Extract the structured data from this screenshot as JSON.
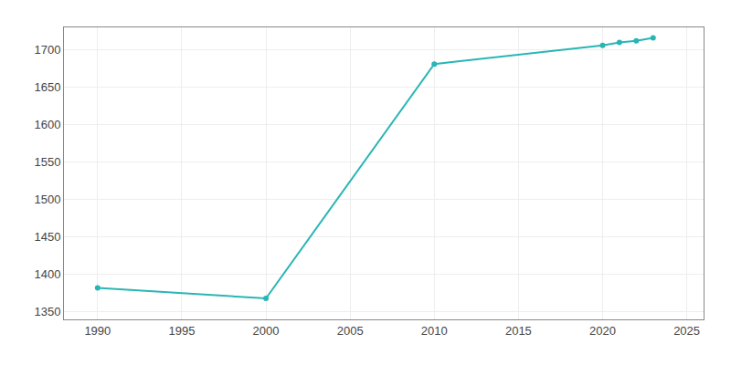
{
  "chart_data": {
    "type": "line",
    "x": [
      1990,
      2000,
      2010,
      2020,
      2021,
      2022,
      2023
    ],
    "values": [
      1382,
      1368,
      1681,
      1706,
      1710,
      1712,
      1716
    ],
    "color": "#2ab5b5",
    "marker": "circle",
    "xlim": [
      1988,
      2026
    ],
    "ylim": [
      1340,
      1730
    ],
    "xticks": [
      1990,
      1995,
      2000,
      2005,
      2010,
      2015,
      2020,
      2025
    ],
    "yticks": [
      1350,
      1400,
      1450,
      1500,
      1550,
      1600,
      1650,
      1700
    ],
    "grid": true
  }
}
